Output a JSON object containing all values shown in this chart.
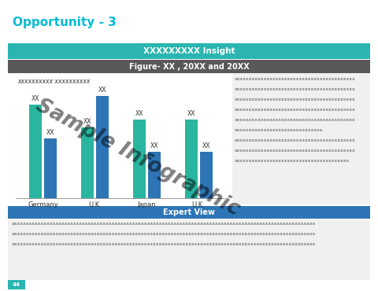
{
  "title": "Opportunity - 3",
  "title_color": "#00bcd4",
  "title_fontsize": 11,
  "teal_banner_text": "XXXXXXXXX Insight",
  "teal_banner_color": "#2ab5b0",
  "dark_banner_text": "Figure- XX , 20XX and 20XX",
  "dark_banner_color": "#595959",
  "legend_text": "xxxxxxxxxx xxxxxxxxxx",
  "categories": [
    "Germany",
    "U.K.",
    "Japan",
    "U.K."
  ],
  "bar1_values": [
    5.0,
    3.8,
    4.2,
    4.2
  ],
  "bar2_values": [
    3.2,
    5.5,
    2.5,
    2.5
  ],
  "bar1_color": "#2ab5a0",
  "bar2_color": "#2e75b6",
  "right_text_lines": [
    "xxxxxxxxxxxxxxxxxxxxxxxxxxxxxxxxxxxxxxxxx",
    "xxxxxxxxxxxxxxxxxxxxxxxxxxxxxxxxxxxxxxxxx",
    "xxxxxxxxxxxxxxxxxxxxxxxxxxxxxxxxxxxxxxxxx",
    "xxxxxxxxxxxxxxxxxxxxxxxxxxxxxxxxxxxxxxxxx",
    "xxxxxxxxxxxxxxxxxxxxxxxxxxxxxxxxxxxxxxxxx",
    "xxxxxxxxxxxxxxxxxxxxxxxxxxxxxx",
    "xxxxxxxxxxxxxxxxxxxxxxxxxxxxxxxxxxxxxxxxx",
    "xxxxxxxxxxxxxxxxxxxxxxxxxxxxxxxxxxxxxxxxx",
    "xxxxxxxxxxxxxxxxxxxxxxxxxxxxxxxxxxxxxxx"
  ],
  "blue_banner_text": "Expert View",
  "blue_banner_color": "#2e75b6",
  "bottom_text_lines": [
    "xxxxxxxxxxxxxxxxxxxxxxxxxxxxxxxxxxxxxxxxxxxxxxxxxxxxxxxxxxxxxxxxxxxxxxxxxxxxxxxxxxxxxxxxxxxxxxxxxxxxxxx",
    "xxxxxxxxxxxxxxxxxxxxxxxxxxxxxxxxxxxxxxxxxxxxxxxxxxxxxxxxxxxxxxxxxxxxxxxxxxxxxxxxxxxxxxxxxxxxxxxxxxxxxxx",
    "xxxxxxxxxxxxxxxxxxxxxxxxxxxxxxxxxxxxxxxxxxxxxxxxxxxxxxxxxxxxxxxxxxxxxxxxxxxxxxxxxxxxxxxxxxxxxxxxxxxxxxx"
  ],
  "bg_color": "#ffffff",
  "chart_bg_color": "#f0f0f0",
  "watermark": "Sample Infographic",
  "page_num": "44",
  "page_num_bg": "#2ab5b0"
}
